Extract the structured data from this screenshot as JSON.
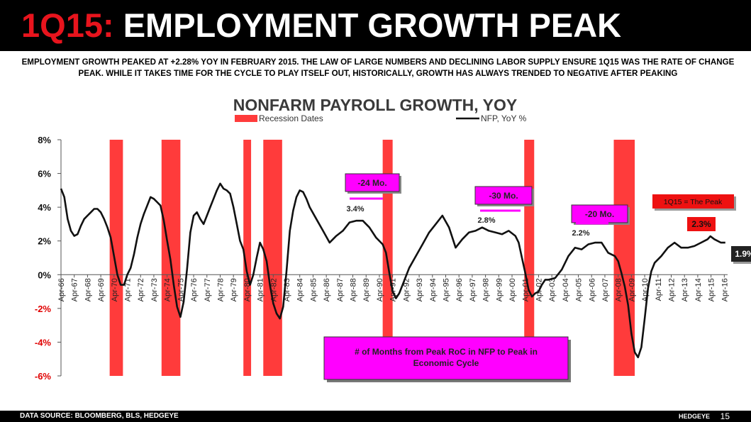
{
  "header": {
    "title_prefix": "1Q15:",
    "title_main": "EMPLOYMENT GROWTH PEAK",
    "subtitle": "EMPLOYMENT GROWTH PEAKED AT +2.28% YOY IN FEBRUARY 2015.  THE LAW OF LARGE NUMBERS AND DECLINING LABOR SUPPLY ENSURE 1Q15 WAS THE RATE OF CHANGE PEAK.  WHILE IT TAKES TIME FOR THE  CYCLE TO PLAY ITSELF OUT, HISTORICALLY, GROWTH HAS ALWAYS TRENDED TO NEGATIVE AFTER PEAKING"
  },
  "footer": {
    "source": "DATA SOURCE: BLOOMBERG, BLS, HEDGEYE",
    "brand": "HEDGEYE",
    "page": "15"
  },
  "colors": {
    "recession": "#ff3b3b",
    "line": "#111111",
    "callout": "#ff00ff",
    "peak_box": "#ee1111",
    "value_box": "#222222",
    "negative_axis": "#e00000"
  },
  "chart_data": {
    "type": "line",
    "title": "NONFARM PAYROLL GROWTH, YOY",
    "legend": {
      "placement": "top",
      "recession_label": "Recession Dates",
      "line_label": "NFP, YoY %"
    },
    "yticks": [
      "8%",
      "6%",
      "4%",
      "2%",
      "0%",
      "-2%",
      "-4%",
      "-6%"
    ],
    "ylim": [
      -6,
      8
    ],
    "xlim": [
      1966.25,
      2016.5
    ],
    "xticks": [
      "Apr-66",
      "Apr-67",
      "Apr-68",
      "Apr-69",
      "Apr-70",
      "Apr-71",
      "Apr-72",
      "Apr-73",
      "Apr-74",
      "Apr-75",
      "Apr-76",
      "Apr-77",
      "Apr-78",
      "Apr-79",
      "Apr-80",
      "Apr-81",
      "Apr-82",
      "Apr-83",
      "Apr-84",
      "Apr-85",
      "Apr-86",
      "Apr-87",
      "Apr-88",
      "Apr-89",
      "Apr-90",
      "Apr-91",
      "Apr-92",
      "Apr-93",
      "Apr-94",
      "Apr-95",
      "Apr-96",
      "Apr-97",
      "Apr-98",
      "Apr-99",
      "Apr-00",
      "Apr-01",
      "Apr-02",
      "Apr-03",
      "Apr-04",
      "Apr-05",
      "Apr-06",
      "Apr-07",
      "Apr-08",
      "Apr-09",
      "Apr-10",
      "Apr-11",
      "Apr-12",
      "Apr-13",
      "Apr-14",
      "Apr-15",
      "Apr-16"
    ],
    "recessions": [
      [
        1969.92,
        1970.92
      ],
      [
        1973.83,
        1975.25
      ],
      [
        1980.0,
        1980.58
      ],
      [
        1981.5,
        1982.92
      ],
      [
        1990.5,
        1991.25
      ],
      [
        2001.17,
        2001.92
      ],
      [
        2007.92,
        2009.5
      ]
    ],
    "series": [
      {
        "x": [
          1966.25,
          1966.5,
          1966.75,
          1967.0,
          1967.25,
          1967.5,
          1967.75,
          1968.0,
          1968.25,
          1968.5,
          1968.75,
          1969.0,
          1969.25,
          1969.5,
          1969.75,
          1970.0,
          1970.25,
          1970.5,
          1970.75,
          1971.0,
          1971.25,
          1971.5,
          1971.75,
          1972.0,
          1972.25,
          1972.5,
          1972.75,
          1973.0,
          1973.25,
          1973.5,
          1973.75,
          1974.0,
          1974.25,
          1974.5,
          1974.75,
          1975.0,
          1975.25,
          1975.5,
          1975.75,
          1976.0,
          1976.25,
          1976.5,
          1976.75,
          1977.0,
          1977.25,
          1977.5,
          1977.75,
          1978.0,
          1978.25,
          1978.5,
          1978.75,
          1979.0,
          1979.25,
          1979.5,
          1979.75,
          1980.0,
          1980.25,
          1980.5,
          1980.75,
          1981.0,
          1981.25,
          1981.5,
          1981.75,
          1982.0,
          1982.25,
          1982.5,
          1982.75,
          1983.0,
          1983.25,
          1983.5,
          1983.75,
          1984.0,
          1984.25,
          1984.5,
          1984.75,
          1985.0,
          1985.5,
          1986.0,
          1986.5,
          1987.0,
          1987.5,
          1988.0,
          1988.5,
          1989.0,
          1989.5,
          1990.0,
          1990.5,
          1990.75,
          1991.0,
          1991.25,
          1991.5,
          1991.75,
          1992.0,
          1992.5,
          1993.0,
          1993.5,
          1994.0,
          1994.5,
          1995.0,
          1995.5,
          1996.0,
          1996.5,
          1997.0,
          1997.5,
          1998.0,
          1998.5,
          1999.0,
          1999.5,
          2000.0,
          2000.5,
          2000.75,
          2001.0,
          2001.25,
          2001.5,
          2001.75,
          2002.0,
          2002.25,
          2002.5,
          2002.75,
          2003.0,
          2003.5,
          2004.0,
          2004.5,
          2005.0,
          2005.5,
          2006.0,
          2006.5,
          2007.0,
          2007.5,
          2008.0,
          2008.25,
          2008.5,
          2008.75,
          2009.0,
          2009.25,
          2009.5,
          2009.75,
          2010.0,
          2010.25,
          2010.5,
          2010.75,
          2011.0,
          2011.5,
          2012.0,
          2012.5,
          2013.0,
          2013.5,
          2014.0,
          2014.5,
          2015.0,
          2015.2,
          2015.5,
          2016.0,
          2016.33
        ],
        "y": [
          5.1,
          4.6,
          3.3,
          2.6,
          2.3,
          2.4,
          2.9,
          3.3,
          3.5,
          3.7,
          3.9,
          3.9,
          3.7,
          3.3,
          2.8,
          2.2,
          1.1,
          0.0,
          -0.6,
          -0.6,
          0.0,
          0.4,
          1.2,
          2.2,
          3.0,
          3.6,
          4.1,
          4.6,
          4.5,
          4.3,
          4.1,
          3.2,
          2.0,
          0.9,
          -0.6,
          -1.9,
          -2.5,
          -1.6,
          0.3,
          2.5,
          3.5,
          3.7,
          3.3,
          3.0,
          3.5,
          4.0,
          4.5,
          5.0,
          5.4,
          5.1,
          5.0,
          4.8,
          4.0,
          3.0,
          2.0,
          1.5,
          0.2,
          -0.6,
          0.0,
          1.0,
          1.9,
          1.5,
          0.8,
          -0.6,
          -1.7,
          -2.3,
          -2.6,
          -1.9,
          0.2,
          2.6,
          3.8,
          4.6,
          5.0,
          4.9,
          4.5,
          4.0,
          3.3,
          2.6,
          1.9,
          2.3,
          2.6,
          3.1,
          3.2,
          3.2,
          2.8,
          2.2,
          1.8,
          1.3,
          0.1,
          -1.0,
          -1.4,
          -1.1,
          -0.6,
          0.4,
          1.1,
          1.8,
          2.5,
          3.0,
          3.5,
          2.8,
          1.6,
          2.1,
          2.5,
          2.6,
          2.8,
          2.6,
          2.5,
          2.4,
          2.6,
          2.3,
          1.9,
          1.0,
          0.1,
          -0.9,
          -1.3,
          -1.1,
          -1.0,
          -0.6,
          -0.3,
          -0.3,
          -0.2,
          0.3,
          1.1,
          1.6,
          1.5,
          1.8,
          1.9,
          1.9,
          1.3,
          1.1,
          0.8,
          0.1,
          -0.7,
          -1.8,
          -3.5,
          -4.6,
          -4.9,
          -4.3,
          -2.6,
          -0.8,
          0.2,
          0.7,
          1.1,
          1.6,
          1.9,
          1.6,
          1.6,
          1.7,
          1.9,
          2.1,
          2.28,
          2.1,
          1.9,
          1.9
        ]
      }
    ],
    "annotations": {
      "callout_text": "# of Months from Peak RoC  in NFP to Peak in Economic Cycle",
      "peak_label": "1Q15 = The Peak",
      "peak_value": "2.3%",
      "current_value": "1.9%",
      "cycles": [
        {
          "months": "-24 Mo.",
          "peak_label": "3.4%"
        },
        {
          "months": "-30 Mo.",
          "peak_label": "2.8%"
        },
        {
          "months": "-20 Mo.",
          "peak_label": "2.2%"
        }
      ]
    }
  }
}
